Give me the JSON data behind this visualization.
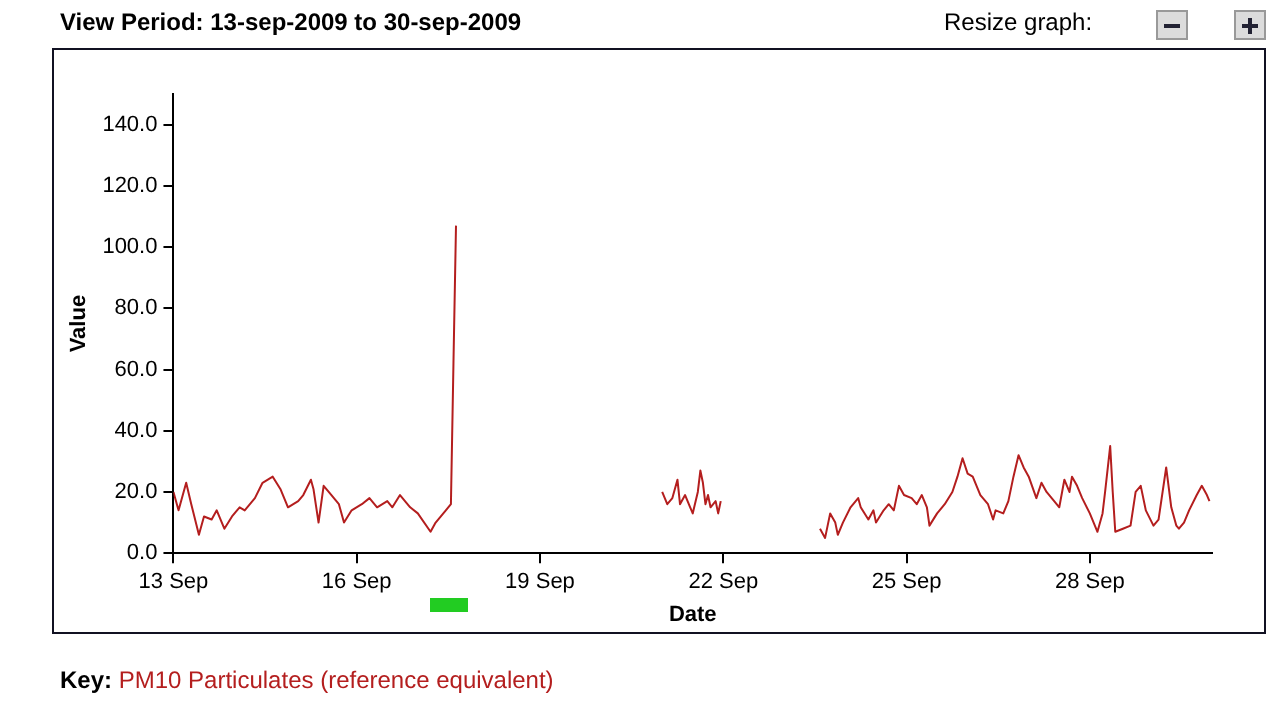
{
  "chart_data": {
    "type": "line",
    "title": "View Period: 13-sep-2009 to 30-sep-2009",
    "xlabel": "Date",
    "ylabel": "Value",
    "annotations": [
      "Resize graph:"
    ],
    "legend": "bottom",
    "legend_title": "Key:",
    "grid": false,
    "marker": "none",
    "line_style": "solid",
    "xlim": [
      "2009-09-13T00:00",
      "2009-09-30T00:00"
    ],
    "xticks": [
      {
        "value": "2009-09-13",
        "label": "13 Sep"
      },
      {
        "value": "2009-09-16",
        "label": "16 Sep"
      },
      {
        "value": "2009-09-19",
        "label": "19 Sep"
      },
      {
        "value": "2009-09-22",
        "label": "22 Sep"
      },
      {
        "value": "2009-09-25",
        "label": "25 Sep"
      },
      {
        "value": "2009-09-28",
        "label": "28 Sep"
      }
    ],
    "ylim": [
      0,
      150
    ],
    "yticks": [
      {
        "value": 0,
        "label": "0.0"
      },
      {
        "value": 20,
        "label": "20.0"
      },
      {
        "value": 40,
        "label": "40.0"
      },
      {
        "value": 60,
        "label": "60.0"
      },
      {
        "value": 80,
        "label": "80.0"
      },
      {
        "value": 100,
        "label": "100.0"
      },
      {
        "value": 120,
        "label": "120.0"
      },
      {
        "value": 140,
        "label": "140.0"
      }
    ],
    "series": [
      {
        "name": "PM10 Particulates (reference equivalent)",
        "color": "#b41e1e",
        "x": [
          "2009-09-13T00:00",
          "2009-09-13T02:00",
          "2009-09-13T05:00",
          "2009-09-13T07:00",
          "2009-09-13T10:00",
          "2009-09-13T12:00",
          "2009-09-13T15:00",
          "2009-09-13T17:00",
          "2009-09-13T20:00",
          "2009-09-13T23:00",
          "2009-09-14T02:00",
          "2009-09-14T04:00",
          "2009-09-14T08:00",
          "2009-09-14T11:00",
          "2009-09-14T15:00",
          "2009-09-14T18:00",
          "2009-09-14T21:00",
          "2009-09-15T01:00",
          "2009-09-15T03:00",
          "2009-09-15T06:00",
          "2009-09-15T07:00",
          "2009-09-15T09:00",
          "2009-09-15T11:00",
          "2009-09-15T13:00",
          "2009-09-15T17:00",
          "2009-09-15T19:00",
          "2009-09-15T22:00",
          "2009-09-16T02:00",
          "2009-09-16T05:00",
          "2009-09-16T08:00",
          "2009-09-16T12:00",
          "2009-09-16T14:00",
          "2009-09-16T17:00",
          "2009-09-16T21:00",
          "2009-09-17T00:00",
          "2009-09-17T05:00",
          "2009-09-17T07:00",
          "2009-09-17T11:00",
          "2009-09-17T13:00",
          "2009-09-17T14:00",
          "2009-09-17T15:00",
          "2009-09-17T16:00",
          "2009-09-21T00:00",
          "2009-09-21T02:00",
          "2009-09-21T04:00",
          "2009-09-21T06:00",
          "2009-09-21T07:00",
          "2009-09-21T09:00",
          "2009-09-21T11:00",
          "2009-09-21T12:00",
          "2009-09-21T14:00",
          "2009-09-21T15:00",
          "2009-09-21T16:00",
          "2009-09-21T17:00",
          "2009-09-21T18:00",
          "2009-09-21T19:00",
          "2009-09-21T21:00",
          "2009-09-21T22:00",
          "2009-09-21T23:00",
          "2009-09-22T00:00",
          "2009-09-23T14:00",
          "2009-09-23T16:00",
          "2009-09-23T18:00",
          "2009-09-23T20:00",
          "2009-09-23T21:00",
          "2009-09-23T23:00",
          "2009-09-24T02:00",
          "2009-09-24T05:00",
          "2009-09-24T06:00",
          "2009-09-24T09:00",
          "2009-09-24T11:00",
          "2009-09-24T12:00",
          "2009-09-24T15:00",
          "2009-09-24T17:00",
          "2009-09-24T19:00",
          "2009-09-24T21:00",
          "2009-09-24T23:00",
          "2009-09-25T02:00",
          "2009-09-25T04:00",
          "2009-09-25T06:00",
          "2009-09-25T08:00",
          "2009-09-25T09:00",
          "2009-09-25T12:00",
          "2009-09-25T15:00",
          "2009-09-25T18:00",
          "2009-09-25T20:00",
          "2009-09-25T22:00",
          "2009-09-26T00:00",
          "2009-09-26T02:00",
          "2009-09-26T05:00",
          "2009-09-26T08:00",
          "2009-09-26T10:00",
          "2009-09-26T11:00",
          "2009-09-26T14:00",
          "2009-09-26T16:00",
          "2009-09-26T18:00",
          "2009-09-26T20:00",
          "2009-09-26T22:00",
          "2009-09-27T00:00",
          "2009-09-27T03:00",
          "2009-09-27T05:00",
          "2009-09-27T07:00",
          "2009-09-27T10:00",
          "2009-09-27T12:00",
          "2009-09-27T14:00",
          "2009-09-27T16:00",
          "2009-09-27T17:00",
          "2009-09-27T19:00",
          "2009-09-27T21:00",
          "2009-09-28T00:00",
          "2009-09-28T03:00",
          "2009-09-28T05:00",
          "2009-09-28T06:00",
          "2009-09-28T08:00",
          "2009-09-28T09:00",
          "2009-09-28T10:00",
          "2009-09-28T13:00",
          "2009-09-28T16:00",
          "2009-09-28T18:00",
          "2009-09-28T20:00",
          "2009-09-28T22:00",
          "2009-09-29T01:00",
          "2009-09-29T03:00",
          "2009-09-29T06:00",
          "2009-09-29T08:00",
          "2009-09-29T10:00",
          "2009-09-29T11:00",
          "2009-09-29T13:00",
          "2009-09-29T15:00",
          "2009-09-29T18:00",
          "2009-09-29T20:00",
          "2009-09-29T22:00",
          "2009-09-29T23:00"
        ],
        "values": [
          20,
          14,
          23,
          16,
          6,
          12,
          11,
          14,
          8,
          12,
          15,
          14,
          18,
          23,
          25,
          21,
          15,
          17,
          19,
          24,
          21,
          10,
          22,
          20,
          16,
          10,
          14,
          16,
          18,
          15,
          17,
          15,
          19,
          15,
          13,
          7,
          10,
          14,
          16,
          62,
          107,
          null,
          20,
          16,
          18,
          24,
          16,
          19,
          15,
          13,
          20,
          27,
          23,
          16,
          19,
          15,
          17,
          13,
          17,
          null,
          8,
          5,
          13,
          10,
          6,
          10,
          15,
          18,
          15,
          11,
          14,
          10,
          14,
          16,
          14,
          22,
          19,
          18,
          16,
          19,
          15,
          9,
          13,
          16,
          20,
          25,
          31,
          26,
          25,
          19,
          16,
          11,
          14,
          13,
          17,
          25,
          32,
          28,
          25,
          18,
          23,
          20,
          17,
          15,
          24,
          20,
          25,
          22,
          18,
          13,
          7,
          13,
          20,
          35,
          20,
          7,
          8,
          9,
          20,
          22,
          14,
          9,
          11,
          28,
          15,
          9,
          8,
          10,
          14,
          19,
          22,
          19,
          17
        ]
      }
    ]
  }
}
